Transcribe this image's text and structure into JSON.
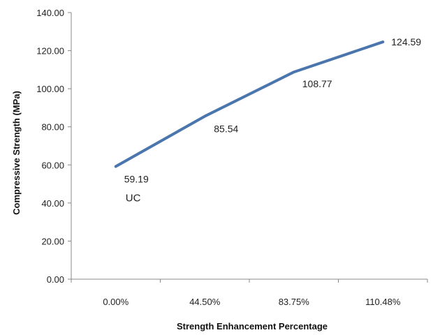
{
  "chart_data": {
    "type": "line",
    "categories": [
      "0.00%",
      "44.50%",
      "83.75%",
      "110.48%"
    ],
    "series": [
      {
        "values": [
          59.19,
          85.54,
          108.77,
          124.59
        ],
        "color": "#4a76ad"
      }
    ],
    "data_labels": [
      "59.19",
      "85.54",
      "108.77",
      "124.59"
    ],
    "xlabel": "Strength Enhancement Percentage",
    "ylabel": "Compressive Strength (MPa)",
    "ylim": [
      0,
      140
    ],
    "yticks": [
      "0.00",
      "20.00",
      "40.00",
      "60.00",
      "80.00",
      "100.00",
      "120.00",
      "140.00"
    ],
    "yticks_values": [
      0,
      20,
      40,
      60,
      80,
      100,
      120,
      140
    ],
    "annotation": "UC",
    "grid": false,
    "legend": "none"
  }
}
